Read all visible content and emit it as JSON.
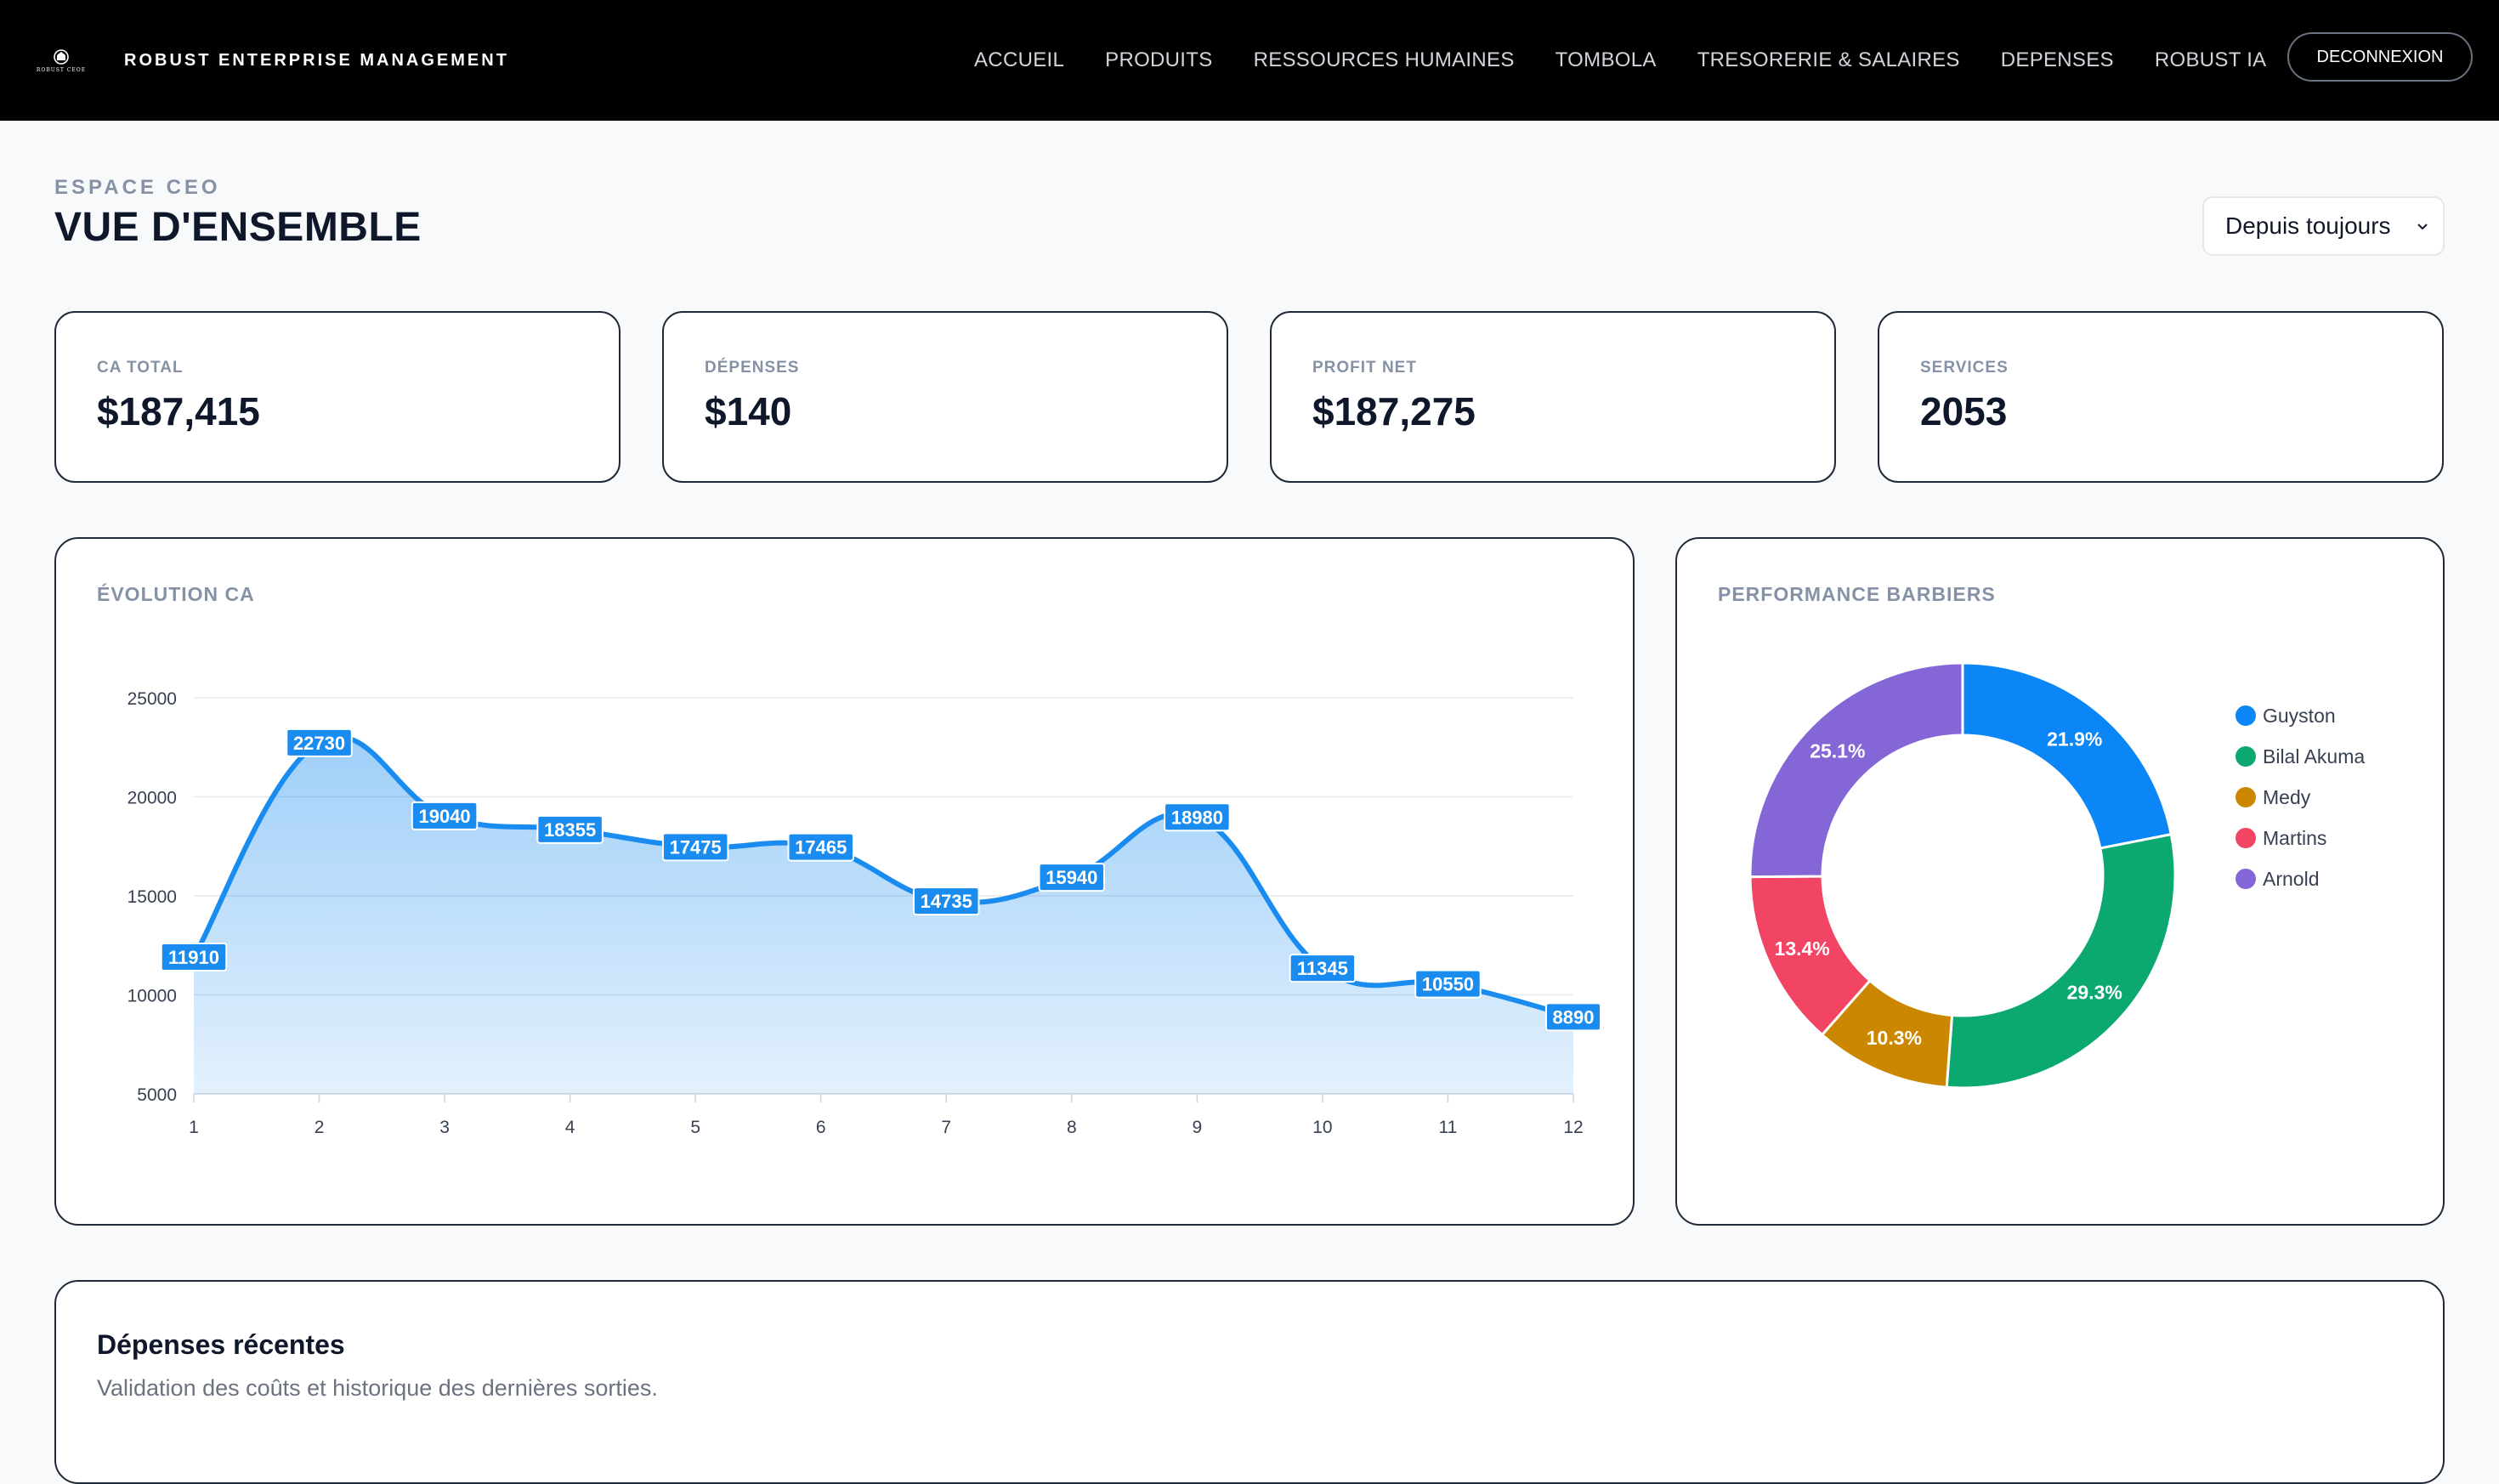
{
  "nav": {
    "logo_text": "ROBUST CEOE",
    "brand": "ROBUST ENTERPRISE MANAGEMENT",
    "links": [
      "ACCUEIL",
      "PRODUITS",
      "RESSOURCES HUMAINES",
      "TOMBOLA",
      "TRESORERIE & SALAIRES",
      "DEPENSES",
      "ROBUST IA"
    ],
    "logout": "DECONNEXION"
  },
  "header": {
    "eyebrow": "ESPACE CEO",
    "title": "VUE D'ENSEMBLE",
    "period": "Depuis toujours"
  },
  "kpis": [
    {
      "label": "CA TOTAL",
      "value": "$187,415"
    },
    {
      "label": "DÉPENSES",
      "value": "$140"
    },
    {
      "label": "PROFIT NET",
      "value": "$187,275"
    },
    {
      "label": "SERVICES",
      "value": "2053"
    }
  ],
  "chart_data": [
    {
      "type": "area",
      "title": "ÉVOLUTION CA",
      "x": [
        1,
        2,
        3,
        4,
        5,
        6,
        7,
        8,
        9,
        10,
        11,
        12
      ],
      "values": [
        11910,
        22730,
        19040,
        18355,
        17475,
        17465,
        14735,
        15940,
        18980,
        11345,
        10550,
        8890
      ],
      "yticks": [
        5000,
        10000,
        15000,
        20000,
        25000
      ],
      "ylim": [
        5000,
        25000
      ],
      "grid": true,
      "color": "#1a8cf0",
      "data_labels": true
    },
    {
      "type": "pie",
      "title": "PERFORMANCE BARBIERS",
      "legend_position": "right",
      "categories": [
        "Guyston",
        "Bilal Akuma",
        "Medy",
        "Martins",
        "Arnold"
      ],
      "values": [
        21.9,
        29.3,
        10.3,
        13.4,
        25.1
      ],
      "labels": [
        "21.9%",
        "29.3%",
        "10.3%",
        "13.4%",
        "25.1%"
      ],
      "colors": [
        "#0a86f6",
        "#0ba870",
        "#cc8700",
        "#f24564",
        "#8466d6"
      ]
    }
  ],
  "recent": {
    "title": "Dépenses récentes",
    "subtitle": "Validation des coûts et historique des dernières sorties."
  }
}
